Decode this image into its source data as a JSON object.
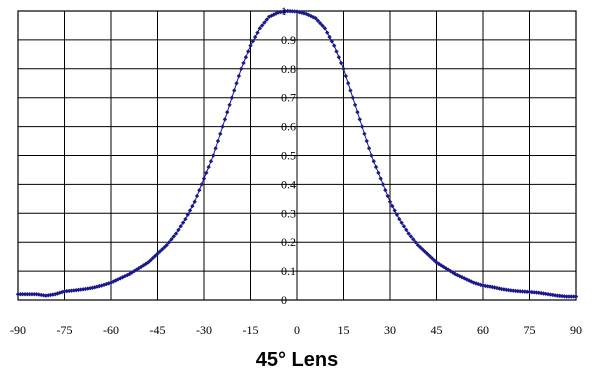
{
  "chart_data": {
    "type": "scatter",
    "title": "45° Lens",
    "xlabel": "",
    "ylabel": "",
    "xlim": [
      -90,
      90
    ],
    "ylim": [
      0,
      1
    ],
    "xticks": [
      "-90",
      "-75",
      "-60",
      "-45",
      "-30",
      "-15",
      "0",
      "15",
      "30",
      "45",
      "60",
      "75",
      "90"
    ],
    "yticks": [
      "0",
      "0.1",
      "0.2",
      "0.3",
      "0.4",
      "0.5",
      "0.6",
      "0.7",
      "0.8",
      "0.9",
      "1"
    ],
    "grid": true,
    "legend": "none",
    "series": [
      {
        "color": "#1a1a8c",
        "x": [
          -90,
          -87,
          -84,
          -81,
          -78,
          -75,
          -72,
          -69,
          -66,
          -63,
          -60,
          -57,
          -54,
          -51,
          -48,
          -45,
          -42,
          -39,
          -36,
          -33,
          -30,
          -27,
          -24,
          -21,
          -18,
          -15,
          -12,
          -9,
          -6,
          -3,
          0,
          3,
          6,
          9,
          12,
          15,
          18,
          21,
          24,
          27,
          30,
          33,
          36,
          39,
          42,
          45,
          48,
          51,
          54,
          57,
          60,
          63,
          66,
          69,
          72,
          75,
          78,
          81,
          84,
          87,
          90
        ],
        "y": [
          0.02,
          0.02,
          0.02,
          0.015,
          0.02,
          0.03,
          0.033,
          0.037,
          0.042,
          0.05,
          0.06,
          0.075,
          0.09,
          0.11,
          0.13,
          0.16,
          0.19,
          0.23,
          0.28,
          0.34,
          0.42,
          0.5,
          0.6,
          0.7,
          0.8,
          0.88,
          0.94,
          0.98,
          0.995,
          1.0,
          0.998,
          0.99,
          0.975,
          0.94,
          0.88,
          0.8,
          0.7,
          0.6,
          0.5,
          0.42,
          0.34,
          0.28,
          0.23,
          0.19,
          0.16,
          0.13,
          0.11,
          0.09,
          0.075,
          0.06,
          0.05,
          0.045,
          0.038,
          0.033,
          0.03,
          0.028,
          0.025,
          0.02,
          0.015,
          0.012,
          0.012
        ]
      }
    ]
  }
}
